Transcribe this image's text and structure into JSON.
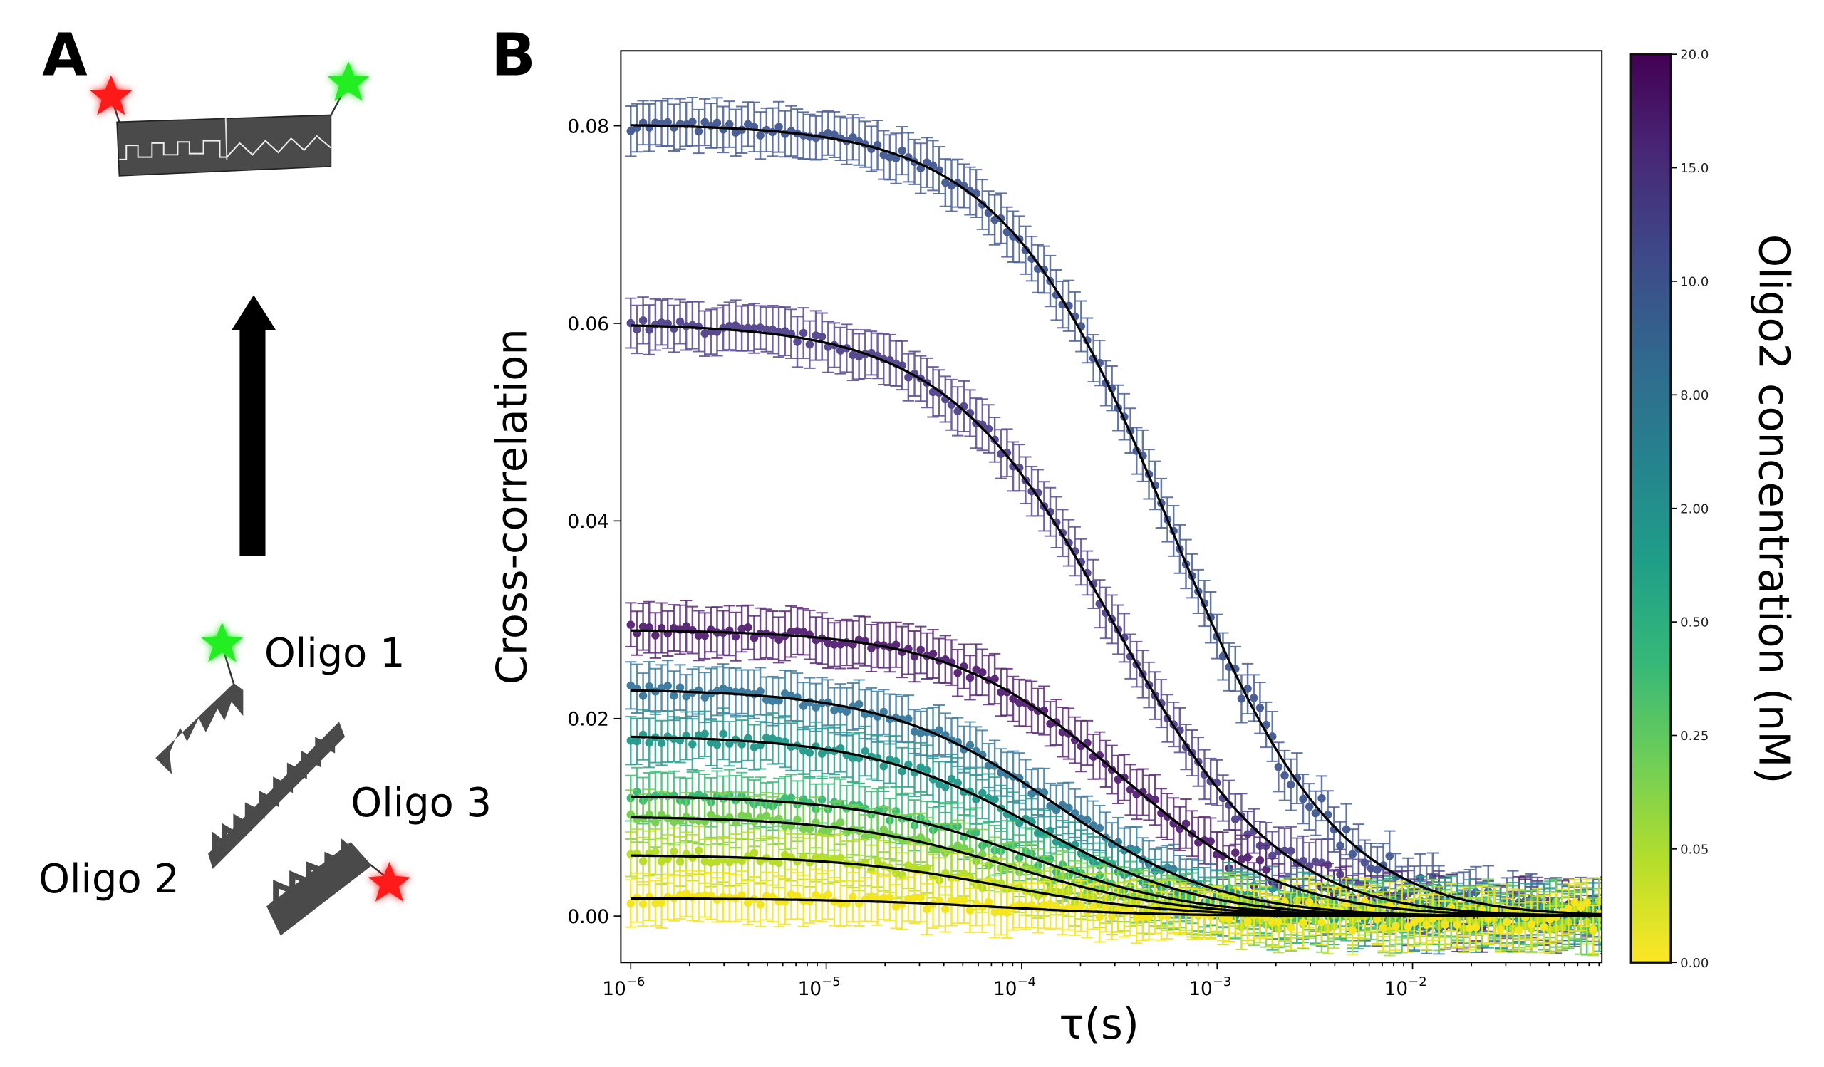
{
  "panel_a": {
    "label": "A",
    "oligo1": "Oligo 1",
    "oligo2": "Oligo 2",
    "oligo3": "Oligo 3",
    "colors": {
      "donor": "#22ee22",
      "acceptor": "#ff1a1a",
      "strand": "#4a4a4a"
    }
  },
  "chart_data": {
    "type": "scatter",
    "panel_label": "B",
    "xlabel": "τ(s)",
    "ylabel": "Cross-correlation",
    "xscale": "log",
    "xlim": [
      8.9e-07,
      0.093
    ],
    "ylim": [
      -0.0047,
      0.0876
    ],
    "xticks": [
      1e-06,
      1e-05,
      0.0001,
      0.001,
      0.01
    ],
    "xtick_labels": [
      [
        "10",
        "−6"
      ],
      [
        "10",
        "−5"
      ],
      [
        "10",
        "−4"
      ],
      [
        "10",
        "−3"
      ],
      [
        "10",
        "−2"
      ]
    ],
    "yticks": [
      0.0,
      0.02,
      0.04,
      0.06,
      0.08
    ],
    "ytick_labels": [
      "0.00",
      "0.02",
      "0.04",
      "0.06",
      "0.08"
    ],
    "grid": false,
    "fit_line_color": "#000000",
    "colorbar": {
      "label": "Oligo2 concentration (nM)",
      "ticks": [
        "20.0",
        "15.0",
        "10.0",
        "8.00",
        "2.00",
        "0.50",
        "0.25",
        "0.05",
        "0.00"
      ],
      "colormap": "viridis",
      "stops": [
        "#fde725",
        "#b5de2b",
        "#6ece58",
        "#35b779",
        "#1f9e89",
        "#26828e",
        "#31688e",
        "#3e4989",
        "#482878",
        "#440154"
      ]
    },
    "series": [
      {
        "concentration": "10.0",
        "amplitude": 0.0802,
        "tau": 0.00058,
        "color": "#4a5f96"
      },
      {
        "concentration": "15.0",
        "amplitude": 0.06,
        "tau": 0.0003,
        "color": "#5a4a90"
      },
      {
        "concentration": "20.0",
        "amplitude": 0.029,
        "tau": 0.00032,
        "color": "#5b2a78"
      },
      {
        "concentration": "8.00",
        "amplitude": 0.023,
        "tau": 0.00015,
        "color": "#3f7ea0"
      },
      {
        "concentration": "2.00",
        "amplitude": 0.0183,
        "tau": 0.00012,
        "color": "#2a9d8f"
      },
      {
        "concentration": "0.50",
        "amplitude": 0.0122,
        "tau": 0.00011,
        "color": "#3cbc78"
      },
      {
        "concentration": "0.25",
        "amplitude": 0.0101,
        "tau": 9e-05,
        "color": "#7ad151"
      },
      {
        "concentration": "0.05",
        "amplitude": 0.0062,
        "tau": 8e-05,
        "color": "#b8de29"
      },
      {
        "concentration": "0.00",
        "amplitude": 0.0018,
        "tau": 8e-05,
        "color": "#f3e51e"
      }
    ]
  }
}
